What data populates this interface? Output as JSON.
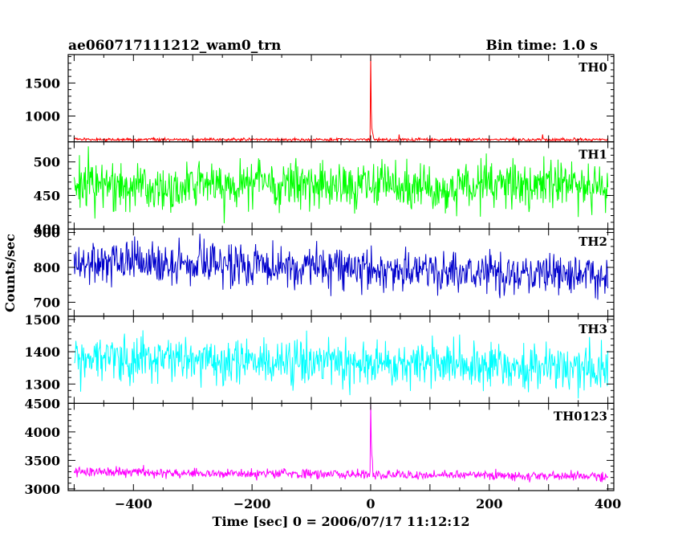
{
  "header": {
    "title": "ae060717111212_wam0_trn",
    "bin_time": "Bin time: 1.0 s"
  },
  "axes": {
    "xlabel": "Time [sec] 0 = 2006/07/17 11:12:12",
    "ylabel": "Counts/sec"
  },
  "chart_data": {
    "type": "line",
    "title": "ae060717111212_wam0_trn",
    "subtitle": "Bin time: 1.0 s",
    "xlabel": "Time [sec] 0 = 2006/07/17 11:12:12",
    "ylabel": "Counts/sec",
    "xlim": [
      -510,
      410
    ],
    "x_ticks": [
      -400,
      -200,
      0,
      200,
      400
    ],
    "x_tick_labels": [
      "−400",
      "−200",
      "0",
      "200",
      "400"
    ],
    "x_range_data": [
      -500,
      400
    ],
    "bin_time_s": 1.0,
    "grid": false,
    "series": [
      {
        "name": "TH0",
        "color": "#ff0000",
        "ylim": [
          610,
          1930
        ],
        "y_ticks": [
          1000,
          1500
        ],
        "y_tick_labels": [
          "1000",
          "1500"
        ],
        "baseline": 645,
        "noise": 12,
        "trend": -5,
        "spikes": [
          {
            "x": 0,
            "y": 1930
          },
          {
            "x": 1,
            "y": 1100
          },
          {
            "x": 2,
            "y": 820
          },
          {
            "x": 3,
            "y": 760
          },
          {
            "x": 4,
            "y": 720
          },
          {
            "x": 48,
            "y": 720
          },
          {
            "x": 290,
            "y": 720
          }
        ]
      },
      {
        "name": "TH1",
        "color": "#00ff00",
        "ylim": [
          400,
          530
        ],
        "y_ticks": [
          400,
          450,
          500
        ],
        "y_tick_labels": [
          "400",
          "450",
          "500"
        ],
        "baseline": 467,
        "noise": 19,
        "trend": 0,
        "spikes": []
      },
      {
        "name": "TH2",
        "color": "#0000cc",
        "ylim": [
          660,
          910
        ],
        "y_ticks": [
          700,
          800,
          900
        ],
        "y_tick_labels": [
          "700",
          "800",
          "900"
        ],
        "baseline": 820,
        "noise": 30,
        "trend": -45,
        "spikes": []
      },
      {
        "name": "TH3",
        "color": "#00ffff",
        "ylim": [
          1240,
          1510
        ],
        "y_ticks": [
          1300,
          1400,
          1500
        ],
        "y_tick_labels": [
          "1300",
          "1400",
          "1500"
        ],
        "baseline": 1382,
        "noise": 37,
        "trend": -35,
        "spikes": []
      },
      {
        "name": "TH0123",
        "color": "#ff00ff",
        "ylim": [
          2970,
          4500
        ],
        "y_ticks": [
          3000,
          3500,
          4000,
          4500
        ],
        "y_tick_labels": [
          "3000",
          "3500",
          "4000",
          "4500"
        ],
        "baseline": 3300,
        "noise": 45,
        "trend": -80,
        "spikes": [
          {
            "x": 0,
            "y": 4500
          },
          {
            "x": 1,
            "y": 3850
          },
          {
            "x": 2,
            "y": 3600
          },
          {
            "x": 3,
            "y": 3500
          }
        ]
      }
    ]
  }
}
